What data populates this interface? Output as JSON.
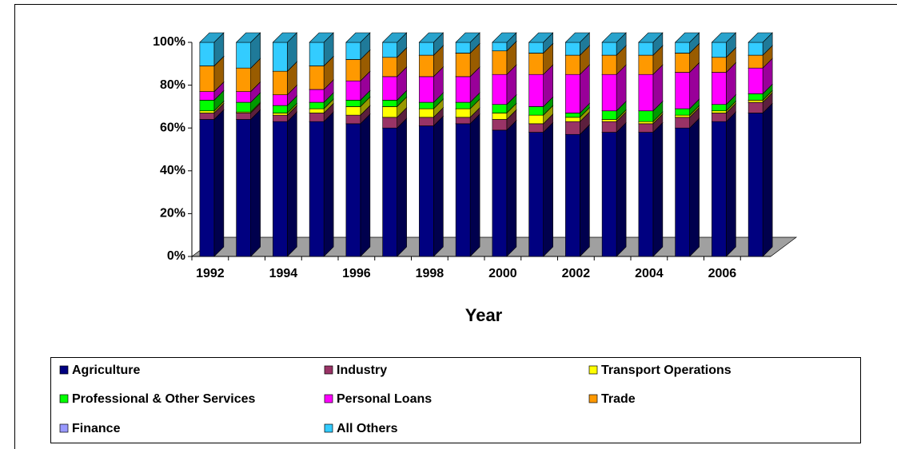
{
  "chart_data": {
    "type": "bar3d-stacked",
    "x_label": "Year",
    "categories": [
      "1992",
      null,
      "1994",
      null,
      "1996",
      null,
      "1998",
      null,
      "2000",
      null,
      "2002",
      null,
      "2004",
      null,
      "2006",
      null
    ],
    "ylim": [
      0,
      100
    ],
    "yticks": [
      {
        "value": 0,
        "label": "0%"
      },
      {
        "value": 20,
        "label": "20%"
      },
      {
        "value": 40,
        "label": "40%"
      },
      {
        "value": 60,
        "label": "60%"
      },
      {
        "value": 80,
        "label": "80%"
      },
      {
        "value": 100,
        "label": "100%"
      }
    ],
    "series": [
      {
        "name": "Agriculture",
        "color": "#000080",
        "values": [
          64,
          64,
          63,
          63,
          62,
          60,
          61,
          62,
          59,
          58,
          57,
          58,
          58,
          60,
          63,
          67
        ]
      },
      {
        "name": "Industry",
        "color": "#993366",
        "values": [
          3,
          3,
          3,
          4,
          4,
          5,
          4,
          3,
          5,
          4,
          6,
          5,
          4,
          5,
          4,
          5
        ]
      },
      {
        "name": "Transport Operations",
        "color": "#ffff00",
        "values": [
          1,
          0.5,
          1,
          2,
          4,
          5,
          4,
          4,
          3,
          4,
          2,
          1,
          1,
          1,
          1,
          1
        ]
      },
      {
        "name": "Professional & Other Services",
        "color": "#00ff00",
        "values": [
          5,
          4.5,
          3.5,
          3,
          3,
          3,
          3,
          3,
          4,
          4,
          2,
          4,
          5,
          3,
          3,
          3
        ]
      },
      {
        "name": "Personal Loans",
        "color": "#ff00ff",
        "values": [
          4,
          5,
          5,
          6,
          9,
          11,
          12,
          12,
          14,
          15,
          18,
          17,
          17,
          17,
          15,
          12
        ]
      },
      {
        "name": "Trade",
        "color": "#ff9900",
        "values": [
          12,
          11,
          11,
          11,
          10,
          9,
          10,
          11,
          11,
          10,
          9,
          9,
          9,
          9,
          7,
          6
        ]
      },
      {
        "name": "Finance",
        "color": "#9999ff",
        "values": [
          0,
          0,
          0,
          0,
          0,
          0,
          0,
          0,
          0,
          0,
          0,
          0,
          0,
          0,
          0,
          0
        ]
      },
      {
        "name": "All Others",
        "color": "#33ccff",
        "values": [
          11,
          12,
          13.5,
          11,
          8,
          7,
          6,
          5,
          4,
          5,
          6,
          6,
          6,
          5,
          7,
          6
        ]
      }
    ],
    "legend": "bottom"
  }
}
